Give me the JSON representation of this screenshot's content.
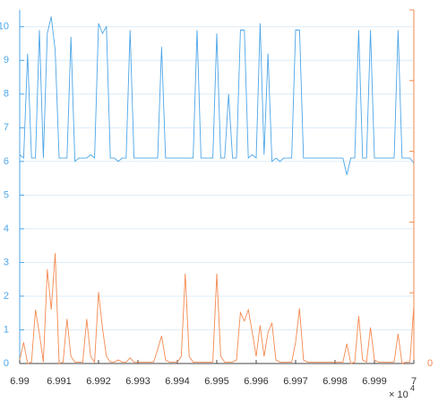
{
  "chart_data": {
    "type": "line",
    "x": [
      69900,
      69901,
      69902,
      69903,
      69904,
      69905,
      69906,
      69907,
      69908,
      69909,
      69910,
      69911,
      69912,
      69913,
      69914,
      69915,
      69916,
      69917,
      69918,
      69919,
      69920,
      69921,
      69922,
      69923,
      69924,
      69925,
      69926,
      69927,
      69928,
      69929,
      69930,
      69931,
      69932,
      69933,
      69934,
      69935,
      69936,
      69937,
      69938,
      69939,
      69940,
      69941,
      69942,
      69943,
      69944,
      69945,
      69946,
      69947,
      69948,
      69949,
      69950,
      69951,
      69952,
      69953,
      69954,
      69955,
      69956,
      69957,
      69958,
      69959,
      69960,
      69961,
      69962,
      69963,
      69964,
      69965,
      69966,
      69967,
      69968,
      69969,
      69970,
      69971,
      69972,
      69973,
      69974,
      69975,
      69976,
      69977,
      69978,
      69979,
      69980,
      69981,
      69982,
      69983,
      69984,
      69985,
      69986,
      69987,
      69988,
      69989,
      69990,
      69991,
      69992,
      69993,
      69994,
      69995,
      69996,
      69997,
      69998,
      69999,
      70000
    ],
    "series": [
      {
        "color": "#4da6e8",
        "values": [
          6.2,
          6.1,
          9.2,
          6.1,
          6.1,
          9.9,
          6.1,
          9.8,
          10.3,
          9.3,
          6.1,
          6.1,
          6.1,
          9.7,
          6.0,
          6.1,
          6.1,
          6.1,
          6.2,
          6.1,
          10.1,
          9.8,
          10.0,
          6.1,
          6.1,
          6.0,
          6.1,
          6.1,
          9.9,
          6.1,
          6.1,
          6.1,
          6.1,
          6.1,
          6.1,
          6.1,
          9.4,
          6.1,
          6.1,
          6.1,
          6.1,
          6.1,
          6.1,
          6.1,
          6.1,
          9.9,
          6.1,
          6.1,
          6.1,
          6.1,
          9.8,
          6.1,
          6.1,
          8.0,
          6.1,
          6.1,
          9.9,
          9.9,
          6.1,
          6.2,
          6.1,
          10.1,
          6.2,
          9.2,
          6.0,
          6.1,
          6.0,
          6.1,
          6.1,
          6.1,
          9.9,
          9.9,
          6.1,
          6.1,
          6.1,
          6.1,
          6.1,
          6.1,
          6.1,
          6.1,
          6.1,
          6.1,
          6.1,
          5.6,
          6.1,
          6.1,
          9.9,
          6.1,
          6.1,
          9.9,
          6.1,
          6.1,
          6.1,
          6.1,
          6.1,
          6.1,
          9.9,
          6.1,
          6.1,
          6.1,
          5.95
        ]
      },
      {
        "color": "#f5894f",
        "axis": "y2",
        "values": [
          0.05,
          0.3,
          0,
          0.02,
          0.76,
          0.42,
          0.02,
          1.33,
          0.76,
          1.56,
          0,
          0.02,
          0.63,
          0.1,
          0.02,
          0.02,
          0.02,
          0.63,
          0.1,
          0.02,
          1.01,
          0.5,
          0.1,
          0.02,
          0.02,
          0.05,
          0.02,
          0.02,
          0.08,
          0.02,
          0.02,
          0.02,
          0.02,
          0.02,
          0.02,
          0.2,
          0.39,
          0.05,
          0.02,
          0.02,
          0.02,
          0.1,
          1.27,
          0.1,
          0.02,
          0.02,
          0.02,
          0.02,
          0.02,
          0.02,
          1.27,
          0.1,
          0.02,
          0.02,
          0.02,
          0.05,
          0.72,
          0.6,
          0.76,
          0.44,
          0.1,
          0.54,
          0.1,
          0.44,
          0.57,
          0.05,
          0.02,
          0.02,
          0.02,
          0.02,
          0.3,
          0.78,
          0.05,
          0.02,
          0.02,
          0.02,
          0.02,
          0.02,
          0.02,
          0.02,
          0.02,
          0.02,
          0.02,
          0.28,
          0,
          0.02,
          0.67,
          0.05,
          0.02,
          0.51,
          0.05,
          0.02,
          0.02,
          0.02,
          0.02,
          0.02,
          0.42,
          0,
          0.02,
          0.02,
          0.82
        ]
      }
    ],
    "xlim": [
      69900,
      70000
    ],
    "xticks": [
      {
        "value": 69900,
        "label": "6.99"
      },
      {
        "value": 69910,
        "label": "6.991"
      },
      {
        "value": 69920,
        "label": "6.992"
      },
      {
        "value": 69930,
        "label": "6.993"
      },
      {
        "value": 69940,
        "label": "6.994"
      },
      {
        "value": 69950,
        "label": "6.995"
      },
      {
        "value": 69960,
        "label": "6.996"
      },
      {
        "value": 69970,
        "label": "6.997"
      },
      {
        "value": 69980,
        "label": "6.998"
      },
      {
        "value": 69990,
        "label": "6.999"
      },
      {
        "value": 70000,
        "label": "7"
      }
    ],
    "x_exponent_base": "× 10",
    "x_exponent": "4",
    "ylim": [
      0,
      10.5
    ],
    "yticks": [
      0,
      1,
      2,
      3,
      4,
      5,
      6,
      7,
      8,
      9,
      10
    ],
    "y2lim": [
      0,
      5
    ],
    "y2ticks": [
      0,
      {
        "value": 1,
        "label": null
      },
      {
        "value": 2,
        "label": null
      },
      {
        "value": 3,
        "label": null
      },
      {
        "value": 4,
        "label": null
      },
      {
        "value": 5,
        "label": null
      }
    ],
    "grid": true
  }
}
